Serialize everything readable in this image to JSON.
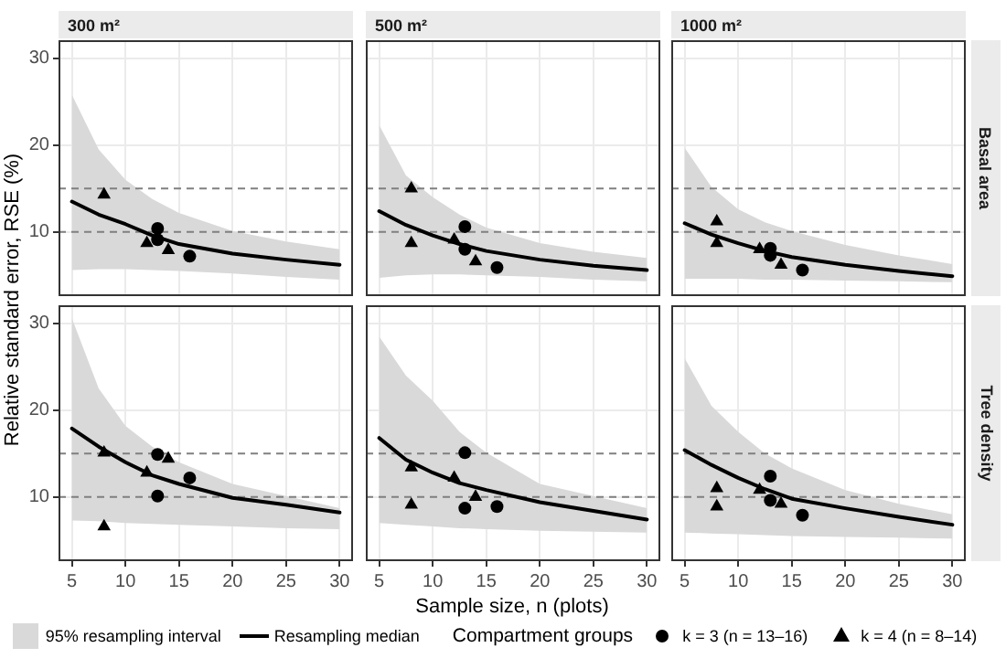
{
  "chart_data": [
    {
      "type": "line",
      "title": "300 m²",
      "ylabel": "Relative standard error, RSE (%)",
      "xlim": [
        3.75,
        31.25
      ],
      "ylim": [
        2.6,
        32.1
      ],
      "xticks": [
        5,
        10,
        15,
        20,
        25,
        30
      ],
      "yticks": [
        10,
        20,
        30
      ],
      "grid": true,
      "tick_labels": "y",
      "legend": "bottom",
      "legend_title": "Compartment groups",
      "annotations": [
        "95% resampling interval"
      ],
      "ref_lines": [
        {
          "axis": "y",
          "value": 10,
          "color": "#808080",
          "line_style": "dashed"
        },
        {
          "axis": "y",
          "value": 15,
          "color": "#808080",
          "line_style": "dashed"
        }
      ],
      "series": [
        {
          "name": "Resampling median",
          "color": "#000000",
          "marker": "none",
          "x": [
            5,
            7.5,
            10,
            12.5,
            15,
            20,
            25,
            30
          ],
          "values": [
            13.5,
            12.0,
            10.9,
            9.6,
            8.6,
            7.5,
            6.8,
            6.2
          ],
          "lower": [
            5.6,
            5.7,
            5.7,
            5.6,
            5.5,
            5.2,
            4.8,
            4.5
          ],
          "upper": [
            25.8,
            19.5,
            16.0,
            13.8,
            12.2,
            10.1,
            8.9,
            8.0
          ]
        },
        {
          "name": "k = 3 (n = 13–16)",
          "type": "scatter",
          "marker": "circle",
          "color": "#000000",
          "x": [
            13,
            13,
            16
          ],
          "values": [
            10.4,
            9.1,
            7.2
          ]
        },
        {
          "name": "k = 4 (n = 8–14)",
          "type": "scatter",
          "marker": "triangle",
          "color": "#000000",
          "x": [
            8,
            12,
            14
          ],
          "values": [
            14.3,
            8.7,
            7.9
          ]
        }
      ]
    },
    {
      "type": "line",
      "title": "500 m²",
      "xlim": [
        3.75,
        31.25
      ],
      "ylim": [
        2.6,
        32.1
      ],
      "xticks": [
        5,
        10,
        15,
        20,
        25,
        30
      ],
      "yticks": [
        10,
        20,
        30
      ],
      "grid": true,
      "tick_labels": false,
      "ref_lines": [
        {
          "axis": "y",
          "value": 10,
          "color": "#808080",
          "line_style": "dashed"
        },
        {
          "axis": "y",
          "value": 15,
          "color": "#808080",
          "line_style": "dashed"
        }
      ],
      "series": [
        {
          "color": "#000000",
          "marker": "none",
          "x": [
            5,
            7.5,
            10,
            12.5,
            15,
            20,
            25,
            30
          ],
          "values": [
            12.4,
            10.8,
            9.6,
            8.6,
            7.8,
            6.8,
            6.1,
            5.6
          ],
          "lower": [
            4.7,
            5.0,
            5.1,
            5.1,
            5.0,
            4.8,
            4.5,
            4.3
          ],
          "upper": [
            22.3,
            16.5,
            14.0,
            12.0,
            10.5,
            8.7,
            7.7,
            7.0
          ]
        },
        {
          "type": "scatter",
          "marker": "circle",
          "color": "#000000",
          "x": [
            13,
            13,
            16
          ],
          "values": [
            10.6,
            8.0,
            5.9
          ]
        },
        {
          "type": "scatter",
          "marker": "triangle",
          "color": "#000000",
          "x": [
            8,
            8,
            12,
            14
          ],
          "values": [
            15.0,
            8.7,
            9.1,
            6.6
          ]
        }
      ]
    },
    {
      "type": "line",
      "title": "1000 m²",
      "y2label": "Basal area",
      "xlim": [
        3.75,
        31.25
      ],
      "ylim": [
        2.6,
        32.1
      ],
      "xticks": [
        5,
        10,
        15,
        20,
        25,
        30
      ],
      "yticks": [
        10,
        20,
        30
      ],
      "grid": true,
      "tick_labels": false,
      "ref_lines": [
        {
          "axis": "y",
          "value": 10,
          "color": "#808080",
          "line_style": "dashed"
        },
        {
          "axis": "y",
          "value": 15,
          "color": "#808080",
          "line_style": "dashed"
        }
      ],
      "series": [
        {
          "color": "#000000",
          "marker": "none",
          "x": [
            5,
            7.5,
            10,
            12.5,
            15,
            20,
            25,
            30
          ],
          "values": [
            11.0,
            9.7,
            8.7,
            7.8,
            7.1,
            6.2,
            5.5,
            4.9
          ],
          "lower": [
            4.6,
            4.6,
            4.6,
            4.5,
            4.5,
            4.4,
            4.3,
            4.2
          ],
          "upper": [
            19.7,
            15.2,
            12.6,
            11.1,
            10.1,
            8.5,
            7.3,
            6.3
          ]
        },
        {
          "type": "scatter",
          "marker": "circle",
          "color": "#000000",
          "x": [
            13,
            13,
            16
          ],
          "values": [
            8.1,
            7.3,
            5.6
          ]
        },
        {
          "type": "scatter",
          "marker": "triangle",
          "color": "#000000",
          "x": [
            8,
            8,
            12,
            14
          ],
          "values": [
            11.2,
            8.7,
            8.0,
            6.2
          ]
        }
      ]
    },
    {
      "type": "line",
      "xlim": [
        3.75,
        31.25
      ],
      "ylim": [
        2.6,
        32.1
      ],
      "xticks": [
        5,
        10,
        15,
        20,
        25,
        30
      ],
      "yticks": [
        10,
        20,
        30
      ],
      "grid": true,
      "ref_lines": [
        {
          "axis": "y",
          "value": 10,
          "color": "#808080",
          "line_style": "dashed"
        },
        {
          "axis": "y",
          "value": 15,
          "color": "#808080",
          "line_style": "dashed"
        }
      ],
      "series": [
        {
          "color": "#000000",
          "marker": "none",
          "x": [
            5,
            7.5,
            10,
            12.5,
            15,
            20,
            25,
            30
          ],
          "values": [
            17.9,
            15.8,
            14.0,
            12.5,
            11.5,
            9.9,
            9.1,
            8.2
          ],
          "lower": [
            7.3,
            7.2,
            7.0,
            6.9,
            6.8,
            6.6,
            6.4,
            6.3
          ],
          "upper": [
            30.6,
            22.5,
            18.2,
            15.8,
            14.0,
            11.5,
            10.1,
            8.7
          ]
        },
        {
          "type": "scatter",
          "marker": "circle",
          "color": "#000000",
          "x": [
            13,
            13,
            16
          ],
          "values": [
            14.9,
            10.1,
            12.2
          ]
        },
        {
          "type": "scatter",
          "marker": "triangle",
          "color": "#000000",
          "x": [
            8,
            8,
            12,
            14
          ],
          "values": [
            15.1,
            6.6,
            12.8,
            14.4
          ]
        }
      ]
    },
    {
      "type": "line",
      "xlabel": "Sample size, n (plots)",
      "xlim": [
        3.75,
        31.25
      ],
      "ylim": [
        2.6,
        32.1
      ],
      "xticks": [
        5,
        10,
        15,
        20,
        25,
        30
      ],
      "yticks": [
        10,
        20,
        30
      ],
      "grid": true,
      "tick_labels": "x",
      "ref_lines": [
        {
          "axis": "y",
          "value": 10,
          "color": "#808080",
          "line_style": "dashed"
        },
        {
          "axis": "y",
          "value": 15,
          "color": "#808080",
          "line_style": "dashed"
        }
      ],
      "series": [
        {
          "color": "#000000",
          "marker": "none",
          "x": [
            5,
            7.5,
            10,
            12.5,
            15,
            20,
            25,
            30
          ],
          "values": [
            16.8,
            14.3,
            12.8,
            11.6,
            10.8,
            9.4,
            8.4,
            7.4
          ],
          "lower": [
            7.0,
            6.8,
            6.6,
            6.4,
            6.3,
            6.1,
            6.0,
            5.9
          ],
          "upper": [
            28.5,
            24.0,
            21.1,
            17.5,
            15.1,
            11.5,
            10.1,
            8.7
          ]
        },
        {
          "type": "scatter",
          "marker": "circle",
          "color": "#000000",
          "x": [
            13,
            13,
            16
          ],
          "values": [
            15.1,
            8.7,
            8.9
          ]
        },
        {
          "type": "scatter",
          "marker": "triangle",
          "color": "#000000",
          "x": [
            8,
            8,
            12,
            14
          ],
          "values": [
            13.4,
            9.1,
            12.2,
            10.0
          ]
        }
      ]
    },
    {
      "type": "line",
      "y2label": "Tree density",
      "xlim": [
        3.75,
        31.25
      ],
      "ylim": [
        2.6,
        32.1
      ],
      "xticks": [
        5,
        10,
        15,
        20,
        25,
        30
      ],
      "yticks": [
        10,
        20,
        30
      ],
      "grid": true,
      "tick_labels": "x",
      "ref_lines": [
        {
          "axis": "y",
          "value": 10,
          "color": "#808080",
          "line_style": "dashed"
        },
        {
          "axis": "y",
          "value": 15,
          "color": "#808080",
          "line_style": "dashed"
        }
      ],
      "series": [
        {
          "color": "#000000",
          "marker": "none",
          "x": [
            5,
            7.5,
            10,
            12.5,
            15,
            20,
            25,
            30
          ],
          "values": [
            15.4,
            13.7,
            12.2,
            10.9,
            9.8,
            8.7,
            7.7,
            6.8
          ],
          "lower": [
            5.9,
            5.8,
            5.7,
            5.6,
            5.5,
            5.4,
            5.3,
            5.2
          ],
          "upper": [
            26.0,
            20.5,
            17.5,
            15.0,
            13.3,
            10.8,
            9.2,
            8.0
          ]
        },
        {
          "type": "scatter",
          "marker": "circle",
          "color": "#000000",
          "x": [
            13,
            13,
            16
          ],
          "values": [
            12.4,
            9.6,
            7.9
          ]
        },
        {
          "type": "scatter",
          "marker": "triangle",
          "color": "#000000",
          "x": [
            8,
            8,
            12,
            14
          ],
          "values": [
            11.0,
            8.9,
            10.8,
            9.2
          ]
        }
      ]
    }
  ]
}
